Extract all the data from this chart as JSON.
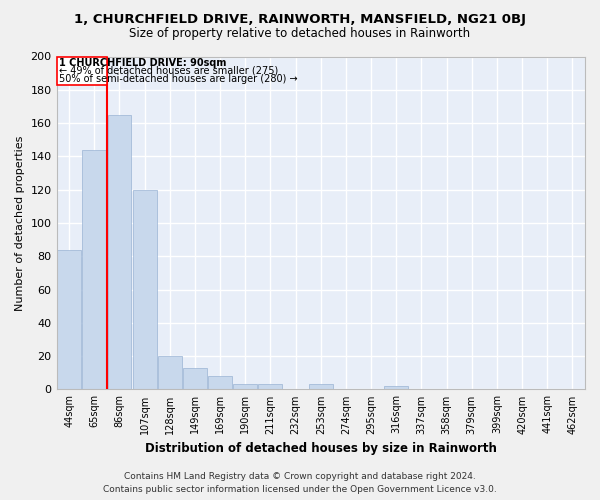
{
  "title": "1, CHURCHFIELD DRIVE, RAINWORTH, MANSFIELD, NG21 0BJ",
  "subtitle": "Size of property relative to detached houses in Rainworth",
  "xlabel": "Distribution of detached houses by size in Rainworth",
  "ylabel": "Number of detached properties",
  "bar_color": "#c8d8ec",
  "bar_edge_color": "#9ab4d4",
  "background_color": "#e8eef8",
  "grid_color": "#ffffff",
  "categories": [
    "44sqm",
    "65sqm",
    "86sqm",
    "107sqm",
    "128sqm",
    "149sqm",
    "169sqm",
    "190sqm",
    "211sqm",
    "232sqm",
    "253sqm",
    "274sqm",
    "295sqm",
    "316sqm",
    "337sqm",
    "358sqm",
    "379sqm",
    "399sqm",
    "420sqm",
    "441sqm",
    "462sqm"
  ],
  "values": [
    84,
    144,
    165,
    120,
    20,
    13,
    8,
    3,
    3,
    0,
    3,
    0,
    0,
    2,
    0,
    0,
    0,
    0,
    0,
    0,
    0
  ],
  "property_bin_index": 2,
  "annotation_line1": "1 CHURCHFIELD DRIVE: 90sqm",
  "annotation_line2": "← 49% of detached houses are smaller (275)",
  "annotation_line3": "50% of semi-detached houses are larger (280) →",
  "footer_line1": "Contains HM Land Registry data © Crown copyright and database right 2024.",
  "footer_line2": "Contains public sector information licensed under the Open Government Licence v3.0.",
  "ylim": [
    0,
    200
  ],
  "yticks": [
    0,
    20,
    40,
    60,
    80,
    100,
    120,
    140,
    160,
    180,
    200
  ],
  "fig_bg": "#f0f0f0"
}
